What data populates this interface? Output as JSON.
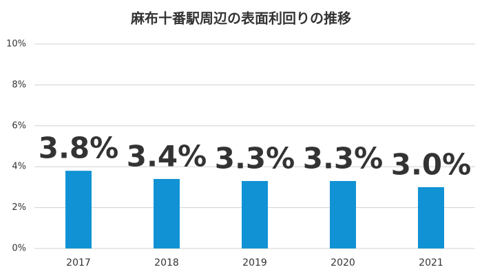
{
  "chart_data": {
    "type": "bar",
    "title": "麻布十番駅周辺の表面利回りの推移",
    "categories": [
      "2017",
      "2018",
      "2019",
      "2020",
      "2021"
    ],
    "values": [
      3.8,
      3.4,
      3.3,
      3.3,
      3.0
    ],
    "value_labels": [
      "3.8%",
      "3.4%",
      "3.3%",
      "3.3%",
      "3.0%"
    ],
    "color": "#1192d4",
    "ylim": [
      0,
      10
    ],
    "yticks": [
      {
        "value": 0,
        "label": "0%"
      },
      {
        "value": 2,
        "label": "2%"
      },
      {
        "value": 4,
        "label": "4%"
      },
      {
        "value": 6,
        "label": "6%"
      },
      {
        "value": 8,
        "label": "8%"
      },
      {
        "value": 10,
        "label": "10%"
      }
    ],
    "grid": true
  }
}
